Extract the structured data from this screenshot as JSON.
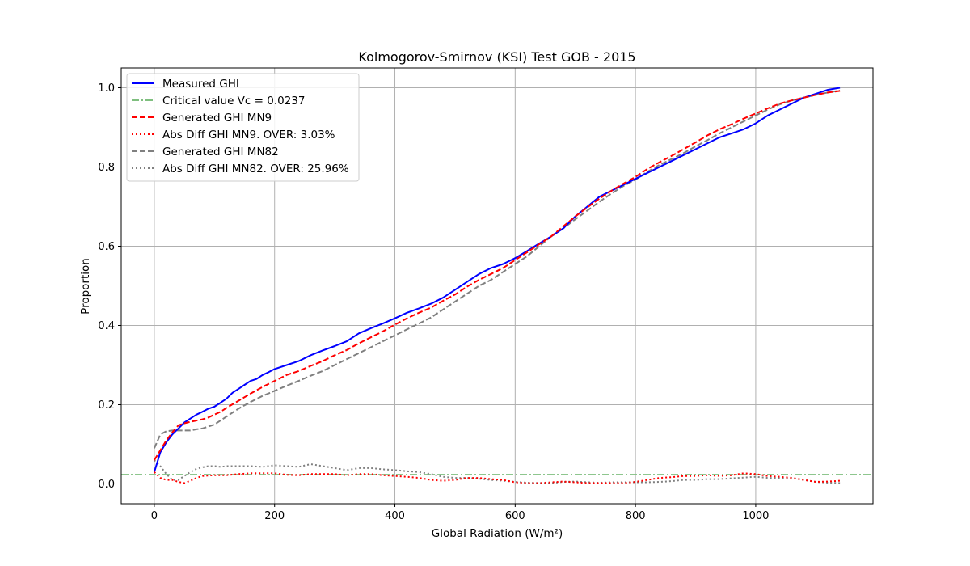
{
  "chart_data": {
    "type": "line",
    "title": "Kolmogorov-Smirnov (KSI) Test GOB - 2015",
    "xlabel": "Global Radiation (W/m²)",
    "ylabel": "Proportion",
    "xlim": [
      -55,
      1195
    ],
    "ylim": [
      -0.05,
      1.05
    ],
    "xticks": [
      0,
      200,
      400,
      600,
      800,
      1000
    ],
    "yticks": [
      0.0,
      0.2,
      0.4,
      0.6,
      0.8,
      1.0
    ],
    "xtick_labels": [
      "0",
      "200",
      "400",
      "600",
      "800",
      "1000"
    ],
    "ytick_labels": [
      "0.0",
      "0.2",
      "0.4",
      "0.6",
      "0.8",
      "1.0"
    ],
    "grid": true,
    "legend_position": "upper-left",
    "hlines": [
      {
        "name": "Critical value Vc = 0.0237",
        "y": 0.0237,
        "color": "#7fbf7f",
        "style": "dashdot"
      }
    ],
    "series": [
      {
        "name": "Measured GHI",
        "color": "#0000ff",
        "style": "solid",
        "width": 2,
        "x": [
          0,
          10,
          20,
          30,
          40,
          50,
          60,
          70,
          80,
          90,
          100,
          110,
          120,
          130,
          140,
          150,
          160,
          170,
          180,
          190,
          200,
          220,
          240,
          260,
          280,
          300,
          320,
          340,
          360,
          380,
          400,
          420,
          440,
          460,
          480,
          500,
          520,
          540,
          560,
          580,
          600,
          620,
          640,
          660,
          680,
          700,
          720,
          740,
          760,
          780,
          800,
          820,
          840,
          860,
          880,
          900,
          920,
          940,
          960,
          980,
          1000,
          1020,
          1040,
          1060,
          1080,
          1100,
          1120,
          1140
        ],
        "y": [
          0.03,
          0.08,
          0.105,
          0.125,
          0.14,
          0.155,
          0.165,
          0.175,
          0.182,
          0.19,
          0.195,
          0.205,
          0.215,
          0.23,
          0.24,
          0.25,
          0.26,
          0.265,
          0.275,
          0.282,
          0.29,
          0.3,
          0.31,
          0.325,
          0.337,
          0.348,
          0.36,
          0.38,
          0.393,
          0.405,
          0.418,
          0.432,
          0.443,
          0.455,
          0.47,
          0.49,
          0.51,
          0.53,
          0.545,
          0.555,
          0.57,
          0.588,
          0.607,
          0.625,
          0.645,
          0.675,
          0.7,
          0.725,
          0.74,
          0.755,
          0.77,
          0.785,
          0.8,
          0.815,
          0.83,
          0.845,
          0.86,
          0.875,
          0.885,
          0.895,
          0.91,
          0.93,
          0.945,
          0.96,
          0.975,
          0.985,
          0.995,
          1.0
        ]
      },
      {
        "name": "Generated GHI MN9",
        "color": "#ff0000",
        "style": "dashed",
        "width": 2,
        "x": [
          0,
          10,
          20,
          30,
          40,
          50,
          60,
          70,
          80,
          90,
          100,
          110,
          120,
          140,
          160,
          180,
          200,
          220,
          240,
          260,
          280,
          300,
          320,
          340,
          360,
          380,
          400,
          420,
          440,
          460,
          480,
          500,
          520,
          540,
          560,
          580,
          600,
          620,
          640,
          660,
          680,
          700,
          720,
          740,
          760,
          780,
          800,
          820,
          840,
          860,
          880,
          900,
          920,
          940,
          960,
          980,
          1000,
          1020,
          1040,
          1060,
          1080,
          1100,
          1120,
          1140
        ],
        "y": [
          0.06,
          0.085,
          0.11,
          0.13,
          0.148,
          0.153,
          0.157,
          0.16,
          0.163,
          0.168,
          0.175,
          0.182,
          0.192,
          0.21,
          0.228,
          0.245,
          0.26,
          0.275,
          0.285,
          0.298,
          0.31,
          0.325,
          0.338,
          0.355,
          0.37,
          0.385,
          0.402,
          0.418,
          0.432,
          0.445,
          0.462,
          0.478,
          0.498,
          0.515,
          0.53,
          0.545,
          0.565,
          0.585,
          0.605,
          0.625,
          0.65,
          0.675,
          0.698,
          0.72,
          0.74,
          0.758,
          0.775,
          0.795,
          0.812,
          0.828,
          0.845,
          0.862,
          0.88,
          0.895,
          0.908,
          0.922,
          0.935,
          0.948,
          0.96,
          0.968,
          0.975,
          0.982,
          0.988,
          0.992
        ]
      },
      {
        "name": "Abs Diff GHI MN9. OVER: 3.03%",
        "color": "#ff0000",
        "style": "dotted",
        "width": 2,
        "x": [
          0,
          10,
          20,
          30,
          40,
          50,
          60,
          70,
          80,
          100,
          120,
          140,
          160,
          180,
          200,
          220,
          240,
          260,
          280,
          300,
          320,
          340,
          360,
          380,
          400,
          420,
          440,
          460,
          480,
          500,
          520,
          540,
          560,
          580,
          600,
          620,
          640,
          660,
          680,
          700,
          720,
          740,
          760,
          780,
          800,
          820,
          840,
          860,
          880,
          900,
          920,
          940,
          960,
          980,
          1000,
          1020,
          1040,
          1060,
          1080,
          1100,
          1120,
          1140
        ],
        "y": [
          0.03,
          0.015,
          0.01,
          0.01,
          0.005,
          0.002,
          0.008,
          0.015,
          0.02,
          0.022,
          0.022,
          0.025,
          0.027,
          0.027,
          0.027,
          0.023,
          0.022,
          0.025,
          0.025,
          0.025,
          0.022,
          0.025,
          0.025,
          0.022,
          0.02,
          0.018,
          0.015,
          0.01,
          0.008,
          0.01,
          0.015,
          0.015,
          0.012,
          0.01,
          0.004,
          0.002,
          0.002,
          0.004,
          0.006,
          0.004,
          0.002,
          0.002,
          0.002,
          0.002,
          0.005,
          0.01,
          0.015,
          0.017,
          0.02,
          0.02,
          0.022,
          0.02,
          0.022,
          0.027,
          0.025,
          0.02,
          0.018,
          0.015,
          0.01,
          0.005,
          0.006,
          0.008
        ]
      },
      {
        "name": "Generated GHI MN82",
        "color": "#808080",
        "style": "dashed",
        "width": 2,
        "x": [
          0,
          10,
          20,
          30,
          40,
          50,
          60,
          70,
          80,
          90,
          100,
          110,
          120,
          140,
          160,
          180,
          200,
          220,
          240,
          260,
          280,
          300,
          320,
          340,
          360,
          380,
          400,
          420,
          440,
          460,
          480,
          500,
          520,
          540,
          560,
          580,
          600,
          620,
          640,
          660,
          680,
          700,
          720,
          740,
          760,
          780,
          800,
          820,
          840,
          860,
          880,
          900,
          920,
          940,
          960,
          980,
          1000,
          1020,
          1040,
          1060,
          1080,
          1100,
          1120,
          1140
        ],
        "y": [
          0.09,
          0.125,
          0.133,
          0.135,
          0.135,
          0.135,
          0.135,
          0.138,
          0.14,
          0.145,
          0.15,
          0.16,
          0.17,
          0.19,
          0.207,
          0.222,
          0.235,
          0.248,
          0.26,
          0.273,
          0.285,
          0.3,
          0.315,
          0.33,
          0.345,
          0.36,
          0.375,
          0.39,
          0.405,
          0.42,
          0.44,
          0.46,
          0.48,
          0.5,
          0.515,
          0.535,
          0.555,
          0.575,
          0.6,
          0.625,
          0.645,
          0.668,
          0.69,
          0.712,
          0.733,
          0.752,
          0.768,
          0.788,
          0.805,
          0.82,
          0.835,
          0.852,
          0.868,
          0.885,
          0.9,
          0.915,
          0.93,
          0.945,
          0.958,
          0.968,
          0.975,
          0.982,
          0.988,
          0.993
        ]
      },
      {
        "name": "Abs Diff GHI MN82. OVER: 25.96%",
        "color": "#808080",
        "style": "dotted",
        "width": 2,
        "x": [
          0,
          10,
          20,
          30,
          40,
          50,
          60,
          70,
          80,
          90,
          100,
          110,
          120,
          140,
          160,
          180,
          200,
          220,
          240,
          260,
          280,
          300,
          320,
          340,
          360,
          380,
          400,
          420,
          440,
          460,
          480,
          500,
          520,
          540,
          560,
          580,
          600,
          620,
          640,
          660,
          680,
          700,
          720,
          740,
          760,
          780,
          800,
          820,
          840,
          860,
          880,
          900,
          920,
          940,
          960,
          980,
          1000,
          1020,
          1040,
          1060,
          1080,
          1100,
          1120,
          1140
        ],
        "y": [
          0.06,
          0.045,
          0.025,
          0.01,
          0.01,
          0.02,
          0.03,
          0.038,
          0.042,
          0.045,
          0.045,
          0.043,
          0.045,
          0.045,
          0.045,
          0.043,
          0.047,
          0.045,
          0.043,
          0.05,
          0.045,
          0.04,
          0.035,
          0.04,
          0.04,
          0.037,
          0.035,
          0.032,
          0.03,
          0.025,
          0.018,
          0.015,
          0.015,
          0.013,
          0.01,
          0.008,
          0.005,
          0.003,
          0.002,
          0.002,
          0.005,
          0.006,
          0.004,
          0.003,
          0.004,
          0.004,
          0.004,
          0.004,
          0.005,
          0.007,
          0.01,
          0.01,
          0.012,
          0.012,
          0.014,
          0.016,
          0.018,
          0.015,
          0.015,
          0.015,
          0.01,
          0.005,
          0.003,
          0.002
        ]
      }
    ],
    "legend": [
      {
        "label": "Measured GHI",
        "color": "#0000ff",
        "style": "solid"
      },
      {
        "label": "Critical value Vc = 0.0237",
        "color": "#7fbf7f",
        "style": "dashdot"
      },
      {
        "label": "Generated GHI MN9",
        "color": "#ff0000",
        "style": "dashed"
      },
      {
        "label": "Abs Diff GHI MN9. OVER: 3.03%",
        "color": "#ff0000",
        "style": "dotted"
      },
      {
        "label": "Generated GHI MN82",
        "color": "#808080",
        "style": "dashed"
      },
      {
        "label": "Abs Diff GHI MN82. OVER: 25.96%",
        "color": "#808080",
        "style": "dotted"
      }
    ]
  }
}
